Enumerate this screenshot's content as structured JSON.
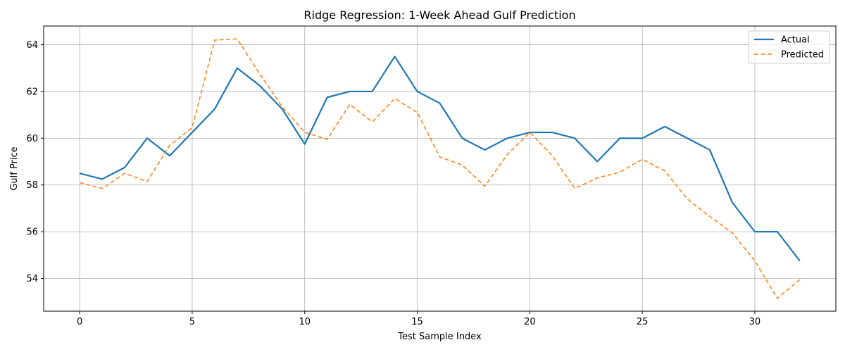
{
  "chart_data": {
    "type": "line",
    "title": "Ridge Regression: 1-Week Ahead Gulf Prediction",
    "xlabel": "Test Sample Index",
    "ylabel": "Gulf Price",
    "xlim": [
      -1.6,
      33.6
    ],
    "ylim": [
      52.6,
      64.8
    ],
    "xticks": [
      0,
      5,
      10,
      15,
      20,
      25,
      30
    ],
    "yticks": [
      54,
      56,
      58,
      60,
      62,
      64
    ],
    "grid": true,
    "legend_position": "top-right",
    "x": [
      0,
      1,
      2,
      3,
      4,
      5,
      6,
      7,
      8,
      9,
      10,
      11,
      12,
      13,
      14,
      15,
      16,
      17,
      18,
      19,
      20,
      21,
      22,
      23,
      24,
      25,
      26,
      27,
      28,
      29,
      30,
      31,
      32
    ],
    "series": [
      {
        "name": "Actual",
        "color": "#1f77b4",
        "style": "solid",
        "values": [
          58.5,
          58.25,
          58.75,
          60.0,
          59.25,
          60.25,
          61.25,
          63.0,
          62.25,
          61.25,
          59.75,
          61.75,
          62.0,
          62.0,
          63.5,
          62.0,
          61.5,
          60.0,
          59.5,
          60.0,
          60.25,
          60.25,
          60.0,
          59.0,
          60.0,
          60.0,
          60.5,
          60.0,
          59.5,
          57.25,
          56.0,
          56.0,
          54.75
        ]
      },
      {
        "name": "Predicted",
        "color": "#ff7f0e",
        "style": "dashed",
        "values": [
          58.1,
          57.85,
          58.5,
          58.15,
          59.7,
          60.45,
          64.2,
          64.25,
          62.75,
          61.35,
          60.25,
          59.95,
          61.45,
          60.7,
          61.7,
          61.1,
          59.2,
          58.85,
          57.95,
          59.3,
          60.25,
          59.25,
          57.85,
          58.3,
          58.55,
          59.1,
          58.6,
          57.4,
          56.65,
          55.95,
          54.75,
          53.15,
          53.95
        ]
      }
    ]
  }
}
